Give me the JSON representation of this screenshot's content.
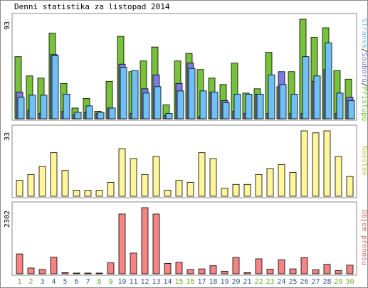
{
  "title": "Denní statistika za listopad 2014",
  "colors": {
    "hits": "#77c23a",
    "files": "#7b7be0",
    "pages": "#6ec0f7",
    "visits": "#fff59a",
    "kbytes": "#f58484",
    "weekday_label": "#3a5a8c",
    "weekend_label": "#6cab2c"
  },
  "chart_data": [
    {
      "type": "bar",
      "categories": [
        "1",
        "2",
        "3",
        "4",
        "5",
        "6",
        "7",
        "8",
        "9",
        "10",
        "11",
        "12",
        "13",
        "14",
        "15",
        "16",
        "17",
        "18",
        "19",
        "20",
        "21",
        "22",
        "23",
        "24",
        "25",
        "26",
        "27",
        "28",
        "29",
        "30"
      ],
      "weekend_days": [
        "1",
        "2",
        "8",
        "9",
        "15",
        "16",
        "22",
        "23",
        "29",
        "30"
      ],
      "ymax_label": "93",
      "ylim": [
        0,
        93
      ],
      "legend": [
        "Stránek",
        "/",
        "Souborů",
        "/",
        "Přístupů"
      ],
      "series": [
        {
          "name": "Přístupů",
          "color_key": "hits",
          "values": [
            58,
            40,
            38,
            80,
            33,
            10,
            19,
            7,
            35,
            77,
            44,
            54,
            67,
            13,
            54,
            61,
            46,
            38,
            32,
            52,
            24,
            28,
            62,
            30,
            44,
            93,
            76,
            85,
            45,
            37
          ]
        },
        {
          "name": "Souborů",
          "color_key": "files",
          "values": [
            25,
            8,
            5,
            60,
            7,
            4,
            6,
            5,
            10,
            51,
            5,
            28,
            41,
            3,
            33,
            52,
            2,
            25,
            17,
            7,
            5,
            23,
            5,
            44,
            5,
            5,
            35,
            46,
            5,
            20
          ]
        },
        {
          "name": "Stránek",
          "color_key": "pages",
          "values": [
            20,
            22,
            22,
            59,
            23,
            6,
            12,
            6,
            10,
            48,
            45,
            24,
            30,
            5,
            26,
            47,
            26,
            25,
            15,
            23,
            23,
            23,
            41,
            32,
            23,
            58,
            40,
            71,
            24,
            17
          ]
        }
      ]
    },
    {
      "type": "bar",
      "categories": [
        "1",
        "2",
        "3",
        "4",
        "5",
        "6",
        "7",
        "8",
        "9",
        "10",
        "11",
        "12",
        "13",
        "14",
        "15",
        "16",
        "17",
        "18",
        "19",
        "20",
        "21",
        "22",
        "23",
        "24",
        "25",
        "26",
        "27",
        "28",
        "29",
        "30"
      ],
      "ymax_label": "33",
      "ylim": [
        0,
        33
      ],
      "legend": [
        "Návštěv"
      ],
      "series": [
        {
          "name": "Návštěv",
          "color_key": "visits",
          "values": [
            8,
            11,
            15,
            22,
            13,
            3,
            3,
            3,
            7,
            24,
            19,
            11,
            20,
            3,
            8,
            7,
            22,
            19,
            4,
            6,
            6,
            11,
            14,
            16,
            12,
            33,
            32,
            33,
            20,
            10
          ]
        }
      ]
    },
    {
      "type": "bar",
      "categories": [
        "1",
        "2",
        "3",
        "4",
        "5",
        "6",
        "7",
        "8",
        "9",
        "10",
        "11",
        "12",
        "13",
        "14",
        "15",
        "16",
        "17",
        "18",
        "19",
        "20",
        "21",
        "22",
        "23",
        "24",
        "25",
        "26",
        "27",
        "28",
        "29",
        "30"
      ],
      "ymax_label": "2302",
      "ylim": [
        0,
        2302
      ],
      "legend": [
        "Objem přenosu"
      ],
      "series": [
        {
          "name": "Objem přenosu",
          "color_key": "kbytes",
          "values": [
            690,
            200,
            150,
            580,
            40,
            20,
            20,
            20,
            380,
            2080,
            720,
            2302,
            2080,
            360,
            400,
            150,
            170,
            280,
            90,
            570,
            40,
            520,
            160,
            490,
            170,
            560,
            140,
            330,
            110,
            300
          ]
        }
      ]
    }
  ]
}
